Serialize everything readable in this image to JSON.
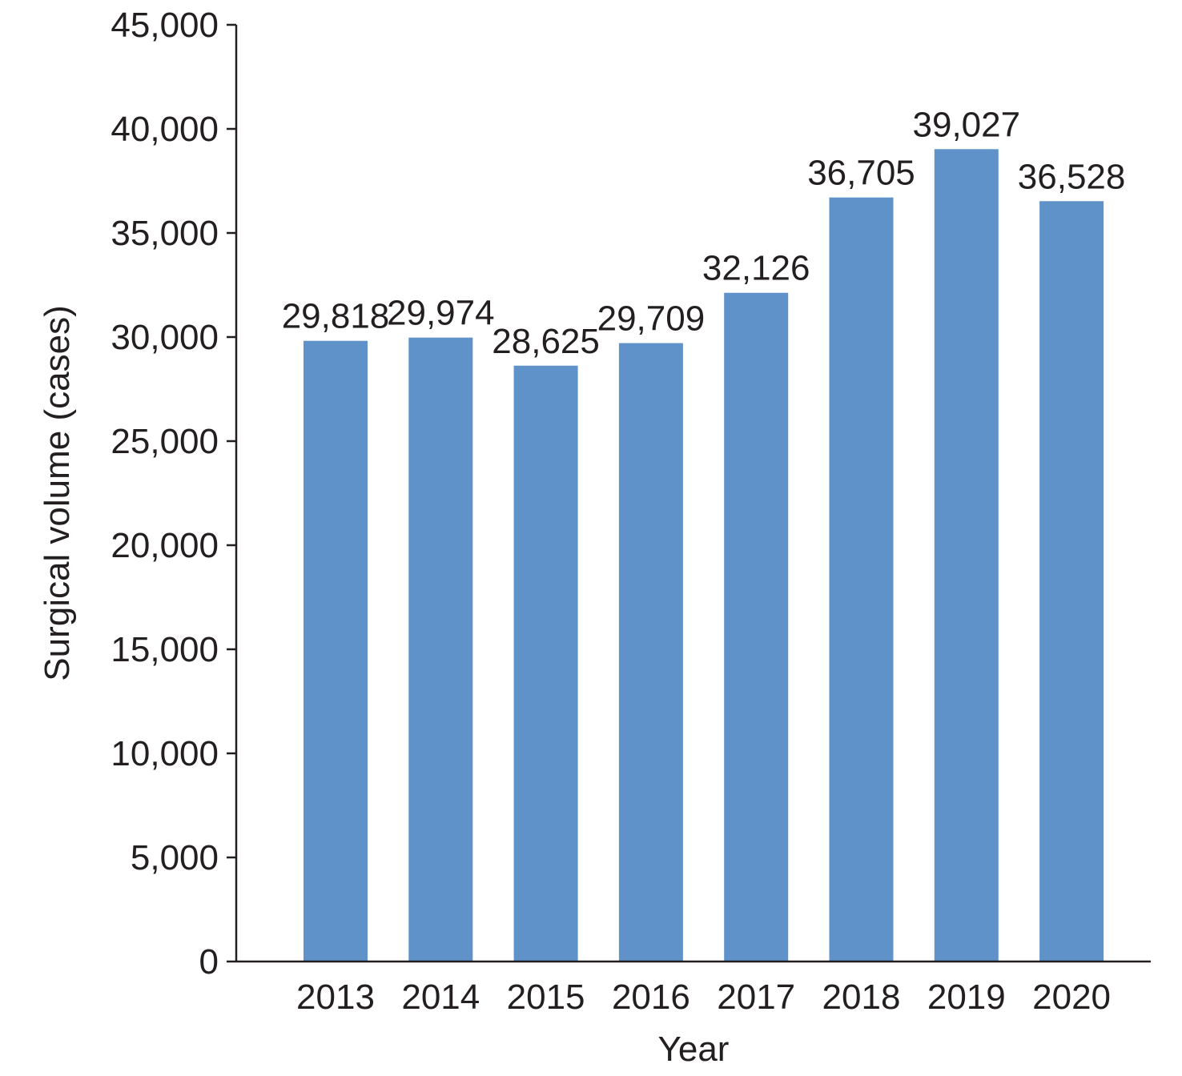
{
  "chart_data": {
    "type": "bar",
    "title": "",
    "xlabel": "Year",
    "ylabel": "Surgical volume (cases)",
    "categories": [
      "2013",
      "2014",
      "2015",
      "2016",
      "2017",
      "2018",
      "2019",
      "2020"
    ],
    "values": [
      29818,
      29974,
      28625,
      29709,
      32126,
      36705,
      39027,
      36528
    ],
    "data_labels": [
      "29,818",
      "29,974",
      "28,625",
      "29,709",
      "32,126",
      "36,705",
      "39,027",
      "36,528"
    ],
    "ylim": [
      0,
      45000
    ],
    "yticks": [
      0,
      5000,
      10000,
      15000,
      20000,
      25000,
      30000,
      35000,
      40000,
      45000
    ],
    "ytick_labels": [
      "0",
      "5,000",
      "10,000",
      "15,000",
      "20,000",
      "25,000",
      "30,000",
      "35,000",
      "40,000",
      "45,000"
    ],
    "grid": false,
    "legend": "none",
    "colors": {
      "bar": "#5f92c9",
      "axis": "#231f20",
      "text": "#231f20"
    }
  }
}
